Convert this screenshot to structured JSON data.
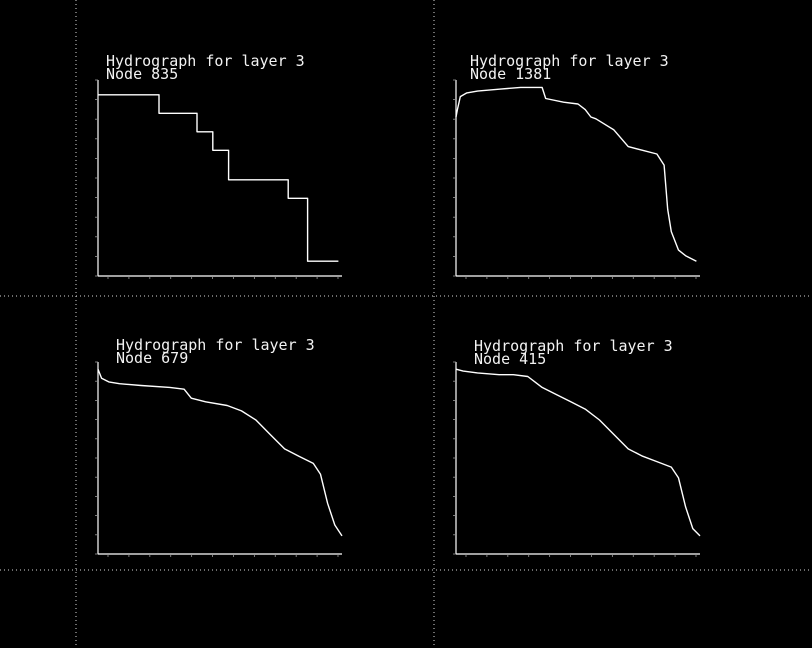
{
  "chart_data": [
    {
      "type": "line",
      "title": "Hydrograph for layer 3",
      "subtitle": "Node 835",
      "x": [
        0,
        3.7,
        8.5,
        12.0,
        13.8,
        16.0,
        18.2,
        23.0,
        26.5,
        29.2,
        30.3,
        31.5,
        33.5
      ],
      "series": [
        {
          "values": [
            9.1,
            9.1,
            8.6,
            8.6,
            8.1,
            7.6,
            6.8,
            6.8,
            6.3,
            4.6,
            4.6,
            4.6,
            4.6
          ]
        }
      ],
      "xlim": [
        0,
        34
      ],
      "ylim": [
        4.2,
        9.5
      ],
      "grid": false
    },
    {
      "type": "line",
      "title": "Hydrograph for layer 3",
      "subtitle": "Node 1381",
      "x": [
        0,
        0.2,
        0.6,
        1.5,
        3.0,
        6.0,
        9.0,
        12.0,
        12.5,
        15.0,
        17.0,
        18.0,
        18.8,
        19.5,
        22.0,
        24.0,
        26.0,
        28.0,
        29.0,
        29.5,
        30.0,
        31.0,
        32.0,
        33.5
      ],
      "series": [
        {
          "values": [
            8.5,
            8.7,
            9.05,
            9.15,
            9.2,
            9.25,
            9.3,
            9.3,
            9.0,
            8.9,
            8.85,
            8.7,
            8.5,
            8.45,
            8.15,
            7.7,
            7.6,
            7.5,
            7.2,
            6.0,
            5.4,
            4.9,
            4.75,
            4.6
          ]
        }
      ],
      "xlim": [
        0,
        34
      ],
      "ylim": [
        4.2,
        9.5
      ],
      "grid": false
    },
    {
      "type": "line",
      "title": "Hydrograph for layer 3",
      "subtitle": "Node 679",
      "x": [
        0,
        0.5,
        1.5,
        3.0,
        6.0,
        10.0,
        12.0,
        13.0,
        15.0,
        18.0,
        20.0,
        22.0,
        24.0,
        26.0,
        28.0,
        30.0,
        31.0,
        32.0,
        33.0,
        34.0
      ],
      "series": [
        {
          "values": [
            9.3,
            9.05,
            8.95,
            8.9,
            8.85,
            8.8,
            8.75,
            8.5,
            8.4,
            8.3,
            8.15,
            7.9,
            7.5,
            7.1,
            6.9,
            6.7,
            6.4,
            5.6,
            5.0,
            4.7
          ]
        }
      ],
      "xlim": [
        0,
        34
      ],
      "ylim": [
        4.2,
        9.5
      ],
      "grid": false
    },
    {
      "type": "line",
      "title": "Hydrograph for layer 3",
      "subtitle": "Node 415",
      "x": [
        0,
        1,
        3,
        6,
        8,
        10,
        12,
        14,
        16,
        18,
        20,
        22,
        24,
        26,
        28,
        30,
        31,
        32,
        33,
        34
      ],
      "series": [
        {
          "values": [
            9.3,
            9.25,
            9.2,
            9.15,
            9.15,
            9.1,
            8.8,
            8.6,
            8.4,
            8.2,
            7.9,
            7.5,
            7.1,
            6.9,
            6.75,
            6.6,
            6.3,
            5.5,
            4.9,
            4.7
          ]
        }
      ],
      "xlim": [
        0,
        34
      ],
      "ylim": [
        4.2,
        9.5
      ],
      "grid": false
    }
  ],
  "colors": {
    "background": "#000000",
    "line": "#ffffff",
    "text": "#f2f2f2",
    "axis": "#ffffff"
  }
}
